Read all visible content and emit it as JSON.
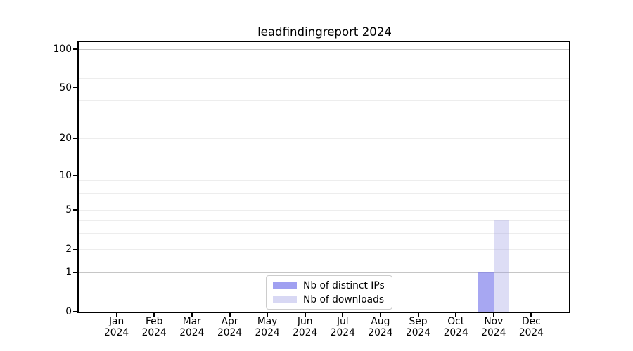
{
  "title": "leadfindingreport 2024",
  "chart_data": {
    "type": "bar",
    "title": "leadfindingreport 2024",
    "categories": [
      "Jan",
      "Feb",
      "Mar",
      "Apr",
      "May",
      "Jun",
      "Jul",
      "Aug",
      "Sep",
      "Oct",
      "Nov",
      "Dec"
    ],
    "category_year": "2024",
    "series": [
      {
        "name": "Nb of distinct IPs",
        "color": "#7878eb",
        "opacity": 0.65,
        "values": [
          0,
          0,
          0,
          0,
          0,
          0,
          0,
          0,
          0,
          0,
          1,
          0
        ]
      },
      {
        "name": "Nb of downloads",
        "color": "#9696e1",
        "opacity": 0.32,
        "values": [
          0,
          0,
          0,
          0,
          0,
          0,
          0,
          0,
          0,
          0,
          4,
          0
        ]
      }
    ],
    "yscale": "log1p",
    "ylim": [
      0,
      113
    ],
    "yticks": [
      0,
      1,
      2,
      5,
      10,
      20,
      50,
      100
    ],
    "major_gridlines": [
      1,
      10,
      100
    ],
    "minor_gridlines": [
      2,
      3,
      4,
      5,
      6,
      7,
      8,
      9,
      20,
      30,
      40,
      50,
      60,
      70,
      80,
      90
    ],
    "grid": true,
    "legend_position": "lower center",
    "colors": {
      "spine": "#000000",
      "major_grid": "#c6c6c6",
      "minor_grid": "#ededed",
      "legend_border": "#cccccc",
      "background": "#ffffff"
    }
  }
}
